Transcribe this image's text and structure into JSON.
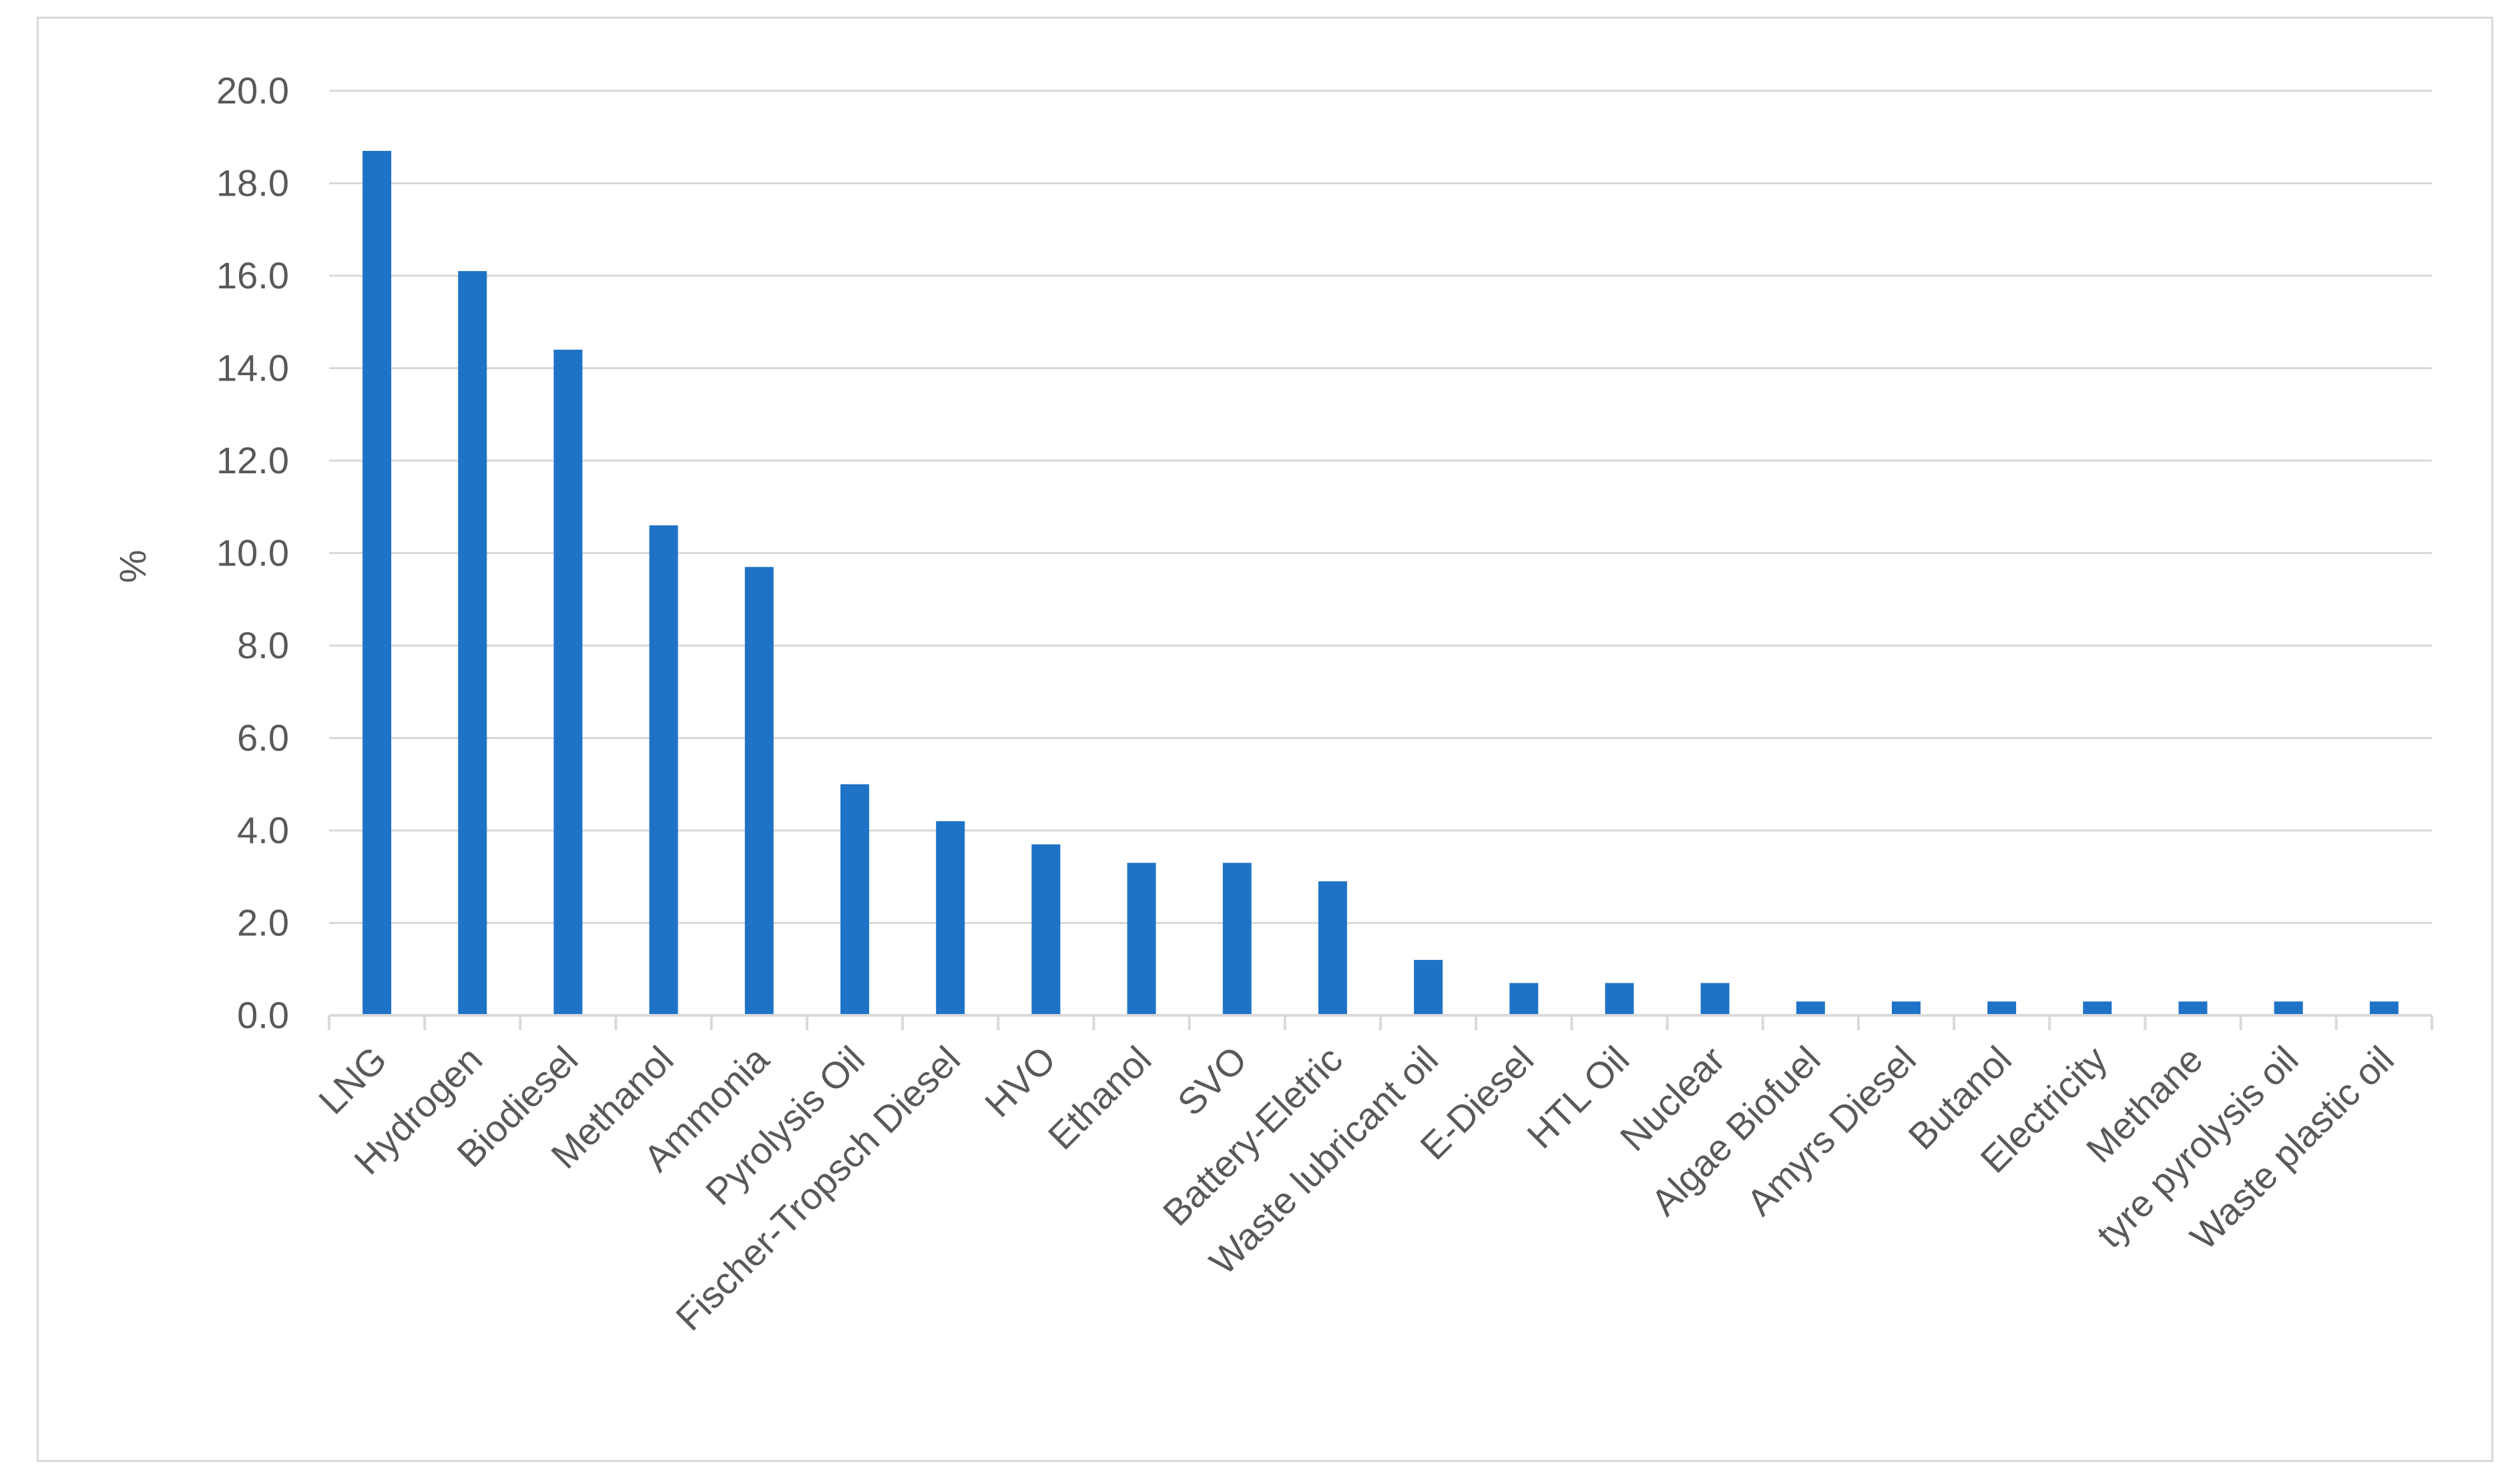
{
  "chart_data": {
    "type": "bar",
    "title": "",
    "xlabel": "",
    "ylabel": "%",
    "ylim": [
      0,
      20
    ],
    "yticks": [
      "0.0",
      "2.0",
      "4.0",
      "6.0",
      "8.0",
      "10.0",
      "12.0",
      "14.0",
      "16.0",
      "18.0",
      "20.0"
    ],
    "grid": true,
    "legend": "none",
    "bar_color": "#1f73c7",
    "categories": [
      "LNG",
      "Hydrogen",
      "Biodiesel",
      "Methanol",
      "Ammonia",
      "Pyrolysis Oil",
      "Fischer-Tropsch Diesel",
      "HVO",
      "Ethanol",
      "SVO",
      "Battery-Eletric",
      "Waste lubricant oil",
      "E-Diesel",
      "HTL Oil",
      "Nuclear",
      "Algae Biofuel",
      "Amyrs Diesel",
      "Butanol",
      "Electricity",
      "Methane",
      "tyre pyrolysis oil",
      "Waste plastic oil"
    ],
    "values": [
      18.7,
      16.1,
      14.4,
      10.6,
      9.7,
      5.0,
      4.2,
      3.7,
      3.3,
      3.3,
      2.9,
      1.2,
      0.7,
      0.7,
      0.7,
      0.3,
      0.3,
      0.3,
      0.3,
      0.3,
      0.3,
      0.3
    ]
  }
}
